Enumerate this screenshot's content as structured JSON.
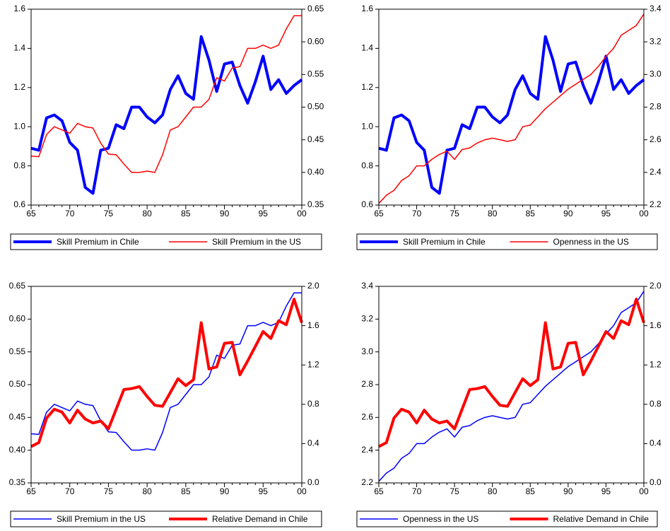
{
  "chart_data": [
    {
      "type": "line",
      "categories": [
        "65",
        null,
        null,
        null,
        null,
        "70",
        null,
        null,
        null,
        null,
        "75",
        null,
        null,
        null,
        null,
        "80",
        null,
        null,
        null,
        null,
        "85",
        null,
        null,
        null,
        null,
        "90",
        null,
        null,
        null,
        null,
        "95",
        null,
        null,
        null,
        null,
        "00"
      ],
      "ylim": [
        0.6,
        1.6
      ],
      "yticks": [
        0.6,
        0.8,
        {
          "value": 1.0,
          "label": "1.0"
        },
        1.2,
        1.4,
        1.6
      ],
      "y2lim": [
        0.35,
        0.65
      ],
      "y2ticks": [
        0.35,
        {
          "value": 0.4,
          "label": "0.40"
        },
        0.45,
        {
          "value": 0.5,
          "label": "0.50"
        },
        0.55,
        {
          "value": 0.6,
          "label": "0.60"
        },
        0.65
      ],
      "series": [
        {
          "name": "Skill Premium in Chile",
          "color": "#0000ff",
          "line_width": 4,
          "axis": "y",
          "values": [
            0.89,
            0.88,
            1.045,
            1.06,
            1.03,
            0.92,
            0.88,
            0.69,
            0.66,
            0.88,
            0.89,
            1.01,
            0.99,
            1.1,
            1.1,
            1.05,
            1.02,
            1.06,
            1.19,
            1.26,
            1.17,
            1.14,
            1.46,
            1.34,
            1.18,
            1.32,
            1.33,
            1.21,
            1.12,
            1.23,
            1.36,
            1.19,
            1.24,
            1.17,
            1.21,
            1.24
          ]
        },
        {
          "name": "Skill Premium in the US",
          "color": "#ff0000",
          "line_width": 1.5,
          "axis": "y2",
          "values": [
            0.425,
            0.424,
            0.458,
            0.47,
            0.465,
            0.46,
            0.475,
            0.47,
            0.468,
            0.445,
            0.428,
            0.427,
            0.413,
            0.4,
            0.4,
            0.402,
            0.4,
            0.427,
            0.465,
            0.47,
            0.485,
            0.5,
            0.5,
            0.512,
            0.545,
            0.54,
            0.56,
            0.562,
            0.59,
            0.59,
            0.595,
            0.59,
            0.595,
            0.62,
            0.64,
            0.64
          ]
        }
      ]
    },
    {
      "type": "line",
      "categories": [
        "65",
        null,
        null,
        null,
        null,
        "70",
        null,
        null,
        null,
        null,
        "75",
        null,
        null,
        null,
        null,
        "80",
        null,
        null,
        null,
        null,
        "85",
        null,
        null,
        null,
        null,
        "90",
        null,
        null,
        null,
        null,
        "95",
        null,
        null,
        null,
        null,
        "00"
      ],
      "ylim": [
        0.6,
        1.6
      ],
      "yticks": [
        0.6,
        0.8,
        {
          "value": 1.0,
          "label": "1.0"
        },
        1.2,
        1.4,
        1.6
      ],
      "y2lim": [
        2.2,
        3.4
      ],
      "y2ticks": [
        2.2,
        2.4,
        2.6,
        2.8,
        {
          "value": 3.0,
          "label": "3.0"
        },
        3.2,
        3.4
      ],
      "series": [
        {
          "name": "Skill Premium in Chile",
          "color": "#0000ff",
          "line_width": 4,
          "axis": "y",
          "values": [
            0.89,
            0.88,
            1.045,
            1.06,
            1.03,
            0.92,
            0.88,
            0.69,
            0.66,
            0.88,
            0.89,
            1.01,
            0.99,
            1.1,
            1.1,
            1.05,
            1.02,
            1.06,
            1.19,
            1.26,
            1.17,
            1.14,
            1.46,
            1.34,
            1.18,
            1.32,
            1.33,
            1.21,
            1.12,
            1.23,
            1.36,
            1.19,
            1.24,
            1.17,
            1.21,
            1.24
          ]
        },
        {
          "name": "Openness in the US",
          "color": "#ff0000",
          "line_width": 1.5,
          "axis": "y2",
          "values": [
            2.21,
            2.26,
            2.29,
            2.35,
            2.38,
            2.44,
            2.44,
            2.48,
            2.51,
            2.53,
            2.48,
            2.54,
            2.55,
            2.58,
            2.6,
            2.61,
            2.6,
            2.59,
            2.6,
            2.68,
            2.69,
            2.74,
            2.79,
            2.83,
            2.87,
            2.91,
            2.94,
            2.97,
            3.0,
            3.05,
            3.11,
            3.16,
            3.24,
            3.27,
            3.3,
            3.37
          ]
        }
      ]
    },
    {
      "type": "line",
      "categories": [
        "65",
        null,
        null,
        null,
        null,
        "70",
        null,
        null,
        null,
        null,
        "75",
        null,
        null,
        null,
        null,
        "80",
        null,
        null,
        null,
        null,
        "85",
        null,
        null,
        null,
        null,
        "90",
        null,
        null,
        null,
        null,
        "95",
        null,
        null,
        null,
        null,
        "00"
      ],
      "ylim": [
        0.35,
        0.65
      ],
      "yticks": [
        0.35,
        {
          "value": 0.4,
          "label": "0.40"
        },
        0.45,
        {
          "value": 0.5,
          "label": "0.50"
        },
        0.55,
        {
          "value": 0.6,
          "label": "0.60"
        },
        0.65
      ],
      "y2lim": [
        0,
        2
      ],
      "y2ticks": [
        {
          "value": 0,
          "label": "0.0"
        },
        0.4,
        0.8,
        1.2,
        1.6,
        {
          "value": 2,
          "label": "2.0"
        }
      ],
      "series": [
        {
          "name": "Skill Premium in the US",
          "color": "#0000ff",
          "line_width": 1.5,
          "axis": "y",
          "values": [
            0.425,
            0.424,
            0.458,
            0.47,
            0.465,
            0.46,
            0.475,
            0.47,
            0.468,
            0.445,
            0.428,
            0.427,
            0.413,
            0.4,
            0.4,
            0.402,
            0.4,
            0.427,
            0.465,
            0.47,
            0.485,
            0.5,
            0.5,
            0.512,
            0.545,
            0.54,
            0.56,
            0.562,
            0.59,
            0.59,
            0.595,
            0.59,
            0.595,
            0.62,
            0.64,
            0.64
          ]
        },
        {
          "name": "Relative Demand in Chile",
          "color": "#ff0000",
          "line_width": 4,
          "axis": "y2",
          "values": [
            0.37,
            0.41,
            0.66,
            0.75,
            0.72,
            0.61,
            0.74,
            0.65,
            0.61,
            0.63,
            0.55,
            0.75,
            0.95,
            0.96,
            0.98,
            0.88,
            0.79,
            0.78,
            0.92,
            1.06,
            0.99,
            1.05,
            1.63,
            1.16,
            1.18,
            1.42,
            1.43,
            1.1,
            1.24,
            1.39,
            1.54,
            1.47,
            1.65,
            1.61,
            1.87,
            1.63
          ]
        }
      ]
    },
    {
      "type": "line",
      "categories": [
        "65",
        null,
        null,
        null,
        null,
        "70",
        null,
        null,
        null,
        null,
        "75",
        null,
        null,
        null,
        null,
        "80",
        null,
        null,
        null,
        null,
        "85",
        null,
        null,
        null,
        null,
        "90",
        null,
        null,
        null,
        null,
        "95",
        null,
        null,
        null,
        null,
        "00"
      ],
      "ylim": [
        2.2,
        3.4
      ],
      "yticks": [
        2.2,
        2.4,
        2.6,
        2.8,
        {
          "value": 3.0,
          "label": "3.0"
        },
        3.2,
        3.4
      ],
      "y2lim": [
        0,
        2
      ],
      "y2ticks": [
        {
          "value": 0,
          "label": "0.0"
        },
        0.4,
        0.8,
        1.2,
        1.6,
        {
          "value": 2,
          "label": "2.0"
        }
      ],
      "series": [
        {
          "name": "Openness in the US",
          "color": "#0000ff",
          "line_width": 1.5,
          "axis": "y",
          "values": [
            2.21,
            2.26,
            2.29,
            2.35,
            2.38,
            2.44,
            2.44,
            2.48,
            2.51,
            2.53,
            2.48,
            2.54,
            2.55,
            2.58,
            2.6,
            2.61,
            2.6,
            2.59,
            2.6,
            2.68,
            2.69,
            2.74,
            2.79,
            2.83,
            2.87,
            2.91,
            2.94,
            2.97,
            3.0,
            3.05,
            3.11,
            3.16,
            3.24,
            3.27,
            3.3,
            3.37
          ]
        },
        {
          "name": "Relative Demand in Chile",
          "color": "#ff0000",
          "line_width": 4,
          "axis": "y2",
          "values": [
            0.37,
            0.41,
            0.66,
            0.75,
            0.72,
            0.61,
            0.74,
            0.65,
            0.61,
            0.63,
            0.55,
            0.75,
            0.95,
            0.96,
            0.98,
            0.88,
            0.79,
            0.78,
            0.92,
            1.06,
            0.99,
            1.05,
            1.63,
            1.16,
            1.18,
            1.42,
            1.43,
            1.1,
            1.24,
            1.39,
            1.54,
            1.47,
            1.65,
            1.61,
            1.87,
            1.63
          ]
        }
      ]
    }
  ]
}
